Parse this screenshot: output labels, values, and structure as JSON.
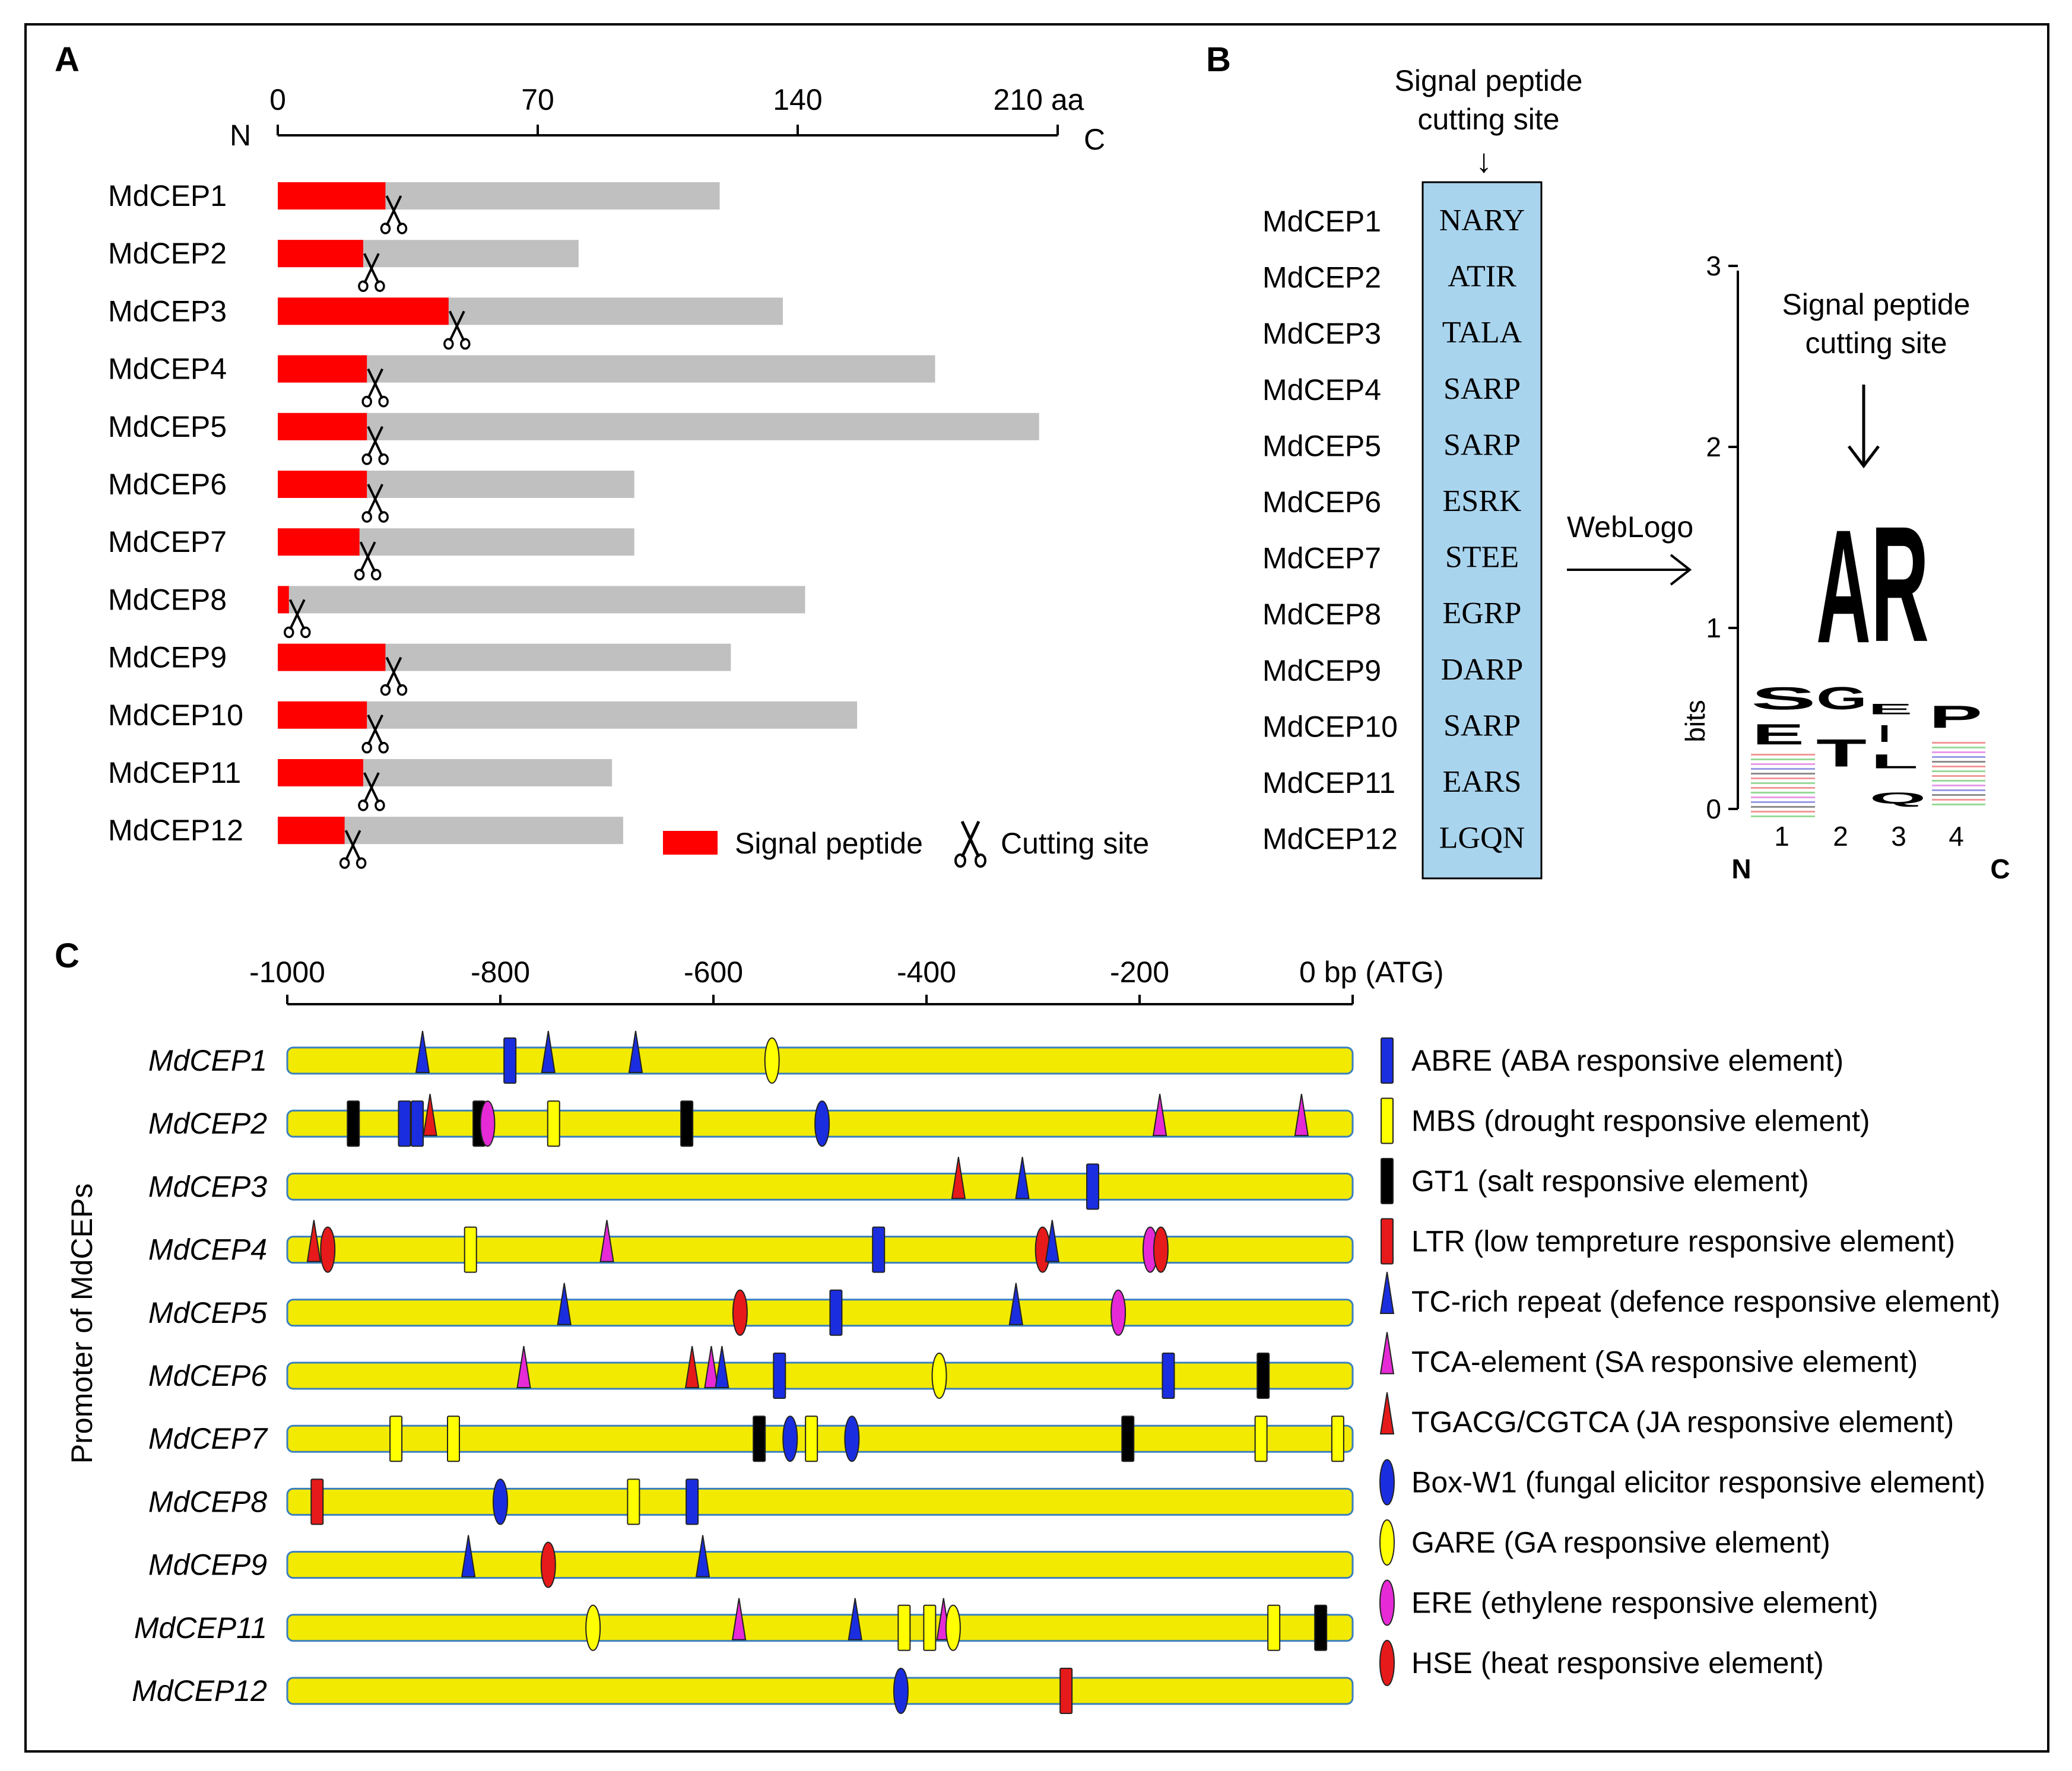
{
  "panels": {
    "A": "A",
    "B": "B",
    "C": "C"
  },
  "panelA": {
    "axis": {
      "ticks": [
        {
          "value": 0,
          "label": "0"
        },
        {
          "value": 70,
          "label": "70"
        },
        {
          "value": 140,
          "label": "140"
        },
        {
          "value": 210,
          "label": "210 aa"
        }
      ],
      "n_label": "N",
      "c_label": "C",
      "max": 210
    },
    "proteins": [
      {
        "name": "MdCEP1",
        "signal": 29,
        "length": 119
      },
      {
        "name": "MdCEP2",
        "signal": 23,
        "length": 81
      },
      {
        "name": "MdCEP3",
        "signal": 46,
        "length": 136
      },
      {
        "name": "MdCEP4",
        "signal": 24,
        "length": 177
      },
      {
        "name": "MdCEP5",
        "signal": 24,
        "length": 205
      },
      {
        "name": "MdCEP6",
        "signal": 24,
        "length": 96
      },
      {
        "name": "MdCEP7",
        "signal": 22,
        "length": 96
      },
      {
        "name": "MdCEP8",
        "signal": 3,
        "length": 142
      },
      {
        "name": "MdCEP9",
        "signal": 29,
        "length": 122
      },
      {
        "name": "MdCEP10",
        "signal": 24,
        "length": 156
      },
      {
        "name": "MdCEP11",
        "signal": 23,
        "length": 90
      },
      {
        "name": "MdCEP12",
        "signal": 18,
        "length": 93
      }
    ],
    "legend": {
      "signal": "Signal peptide",
      "cutting": "Cutting site"
    },
    "colors": {
      "signal": "#ff0000",
      "mature": "#c0c0c0"
    }
  },
  "panelB": {
    "title_line1": "Signal peptide",
    "title_line2": "cutting site",
    "arrow_glyph": "↓",
    "rows": [
      {
        "name": "MdCEP1",
        "seq": "NARY"
      },
      {
        "name": "MdCEP2",
        "seq": "ATIR"
      },
      {
        "name": "MdCEP3",
        "seq": "TALA"
      },
      {
        "name": "MdCEP4",
        "seq": "SARP"
      },
      {
        "name": "MdCEP5",
        "seq": "SARP"
      },
      {
        "name": "MdCEP6",
        "seq": "ESRK"
      },
      {
        "name": "MdCEP7",
        "seq": "STEE"
      },
      {
        "name": "MdCEP8",
        "seq": "EGRP"
      },
      {
        "name": "MdCEP9",
        "seq": "DARP"
      },
      {
        "name": "MdCEP10",
        "seq": "SARP"
      },
      {
        "name": "MdCEP11",
        "seq": "EARS"
      },
      {
        "name": "MdCEP12",
        "seq": "LGQN"
      }
    ],
    "box_color": "#a9d4ee",
    "weblogo_label": "WebLogo",
    "logo": {
      "y_axis_label": "bits",
      "y_ticks": [
        "0",
        "1",
        "2",
        "3"
      ],
      "x_ticks": [
        "1",
        "2",
        "3",
        "4"
      ],
      "n_label": "N",
      "c_label": "C",
      "title_line1": "Signal peptide",
      "title_line2": "cutting site",
      "major_letters": [
        {
          "letter": "A",
          "position": 2,
          "color": "#000000"
        },
        {
          "letter": "R",
          "position": 3,
          "color": "#1a20c8"
        }
      ],
      "minor_letters": [
        {
          "letter": "S",
          "position": 1,
          "color": "#1aaa1a"
        },
        {
          "letter": "E",
          "position": 1,
          "color": "#e01a1a"
        },
        {
          "letter": "G",
          "position": 2,
          "color": "#1aaa1a"
        },
        {
          "letter": "T",
          "position": 2,
          "color": "#1aaa1a"
        },
        {
          "letter": "E",
          "position": 3,
          "color": "#e01a1a"
        },
        {
          "letter": "I",
          "position": 3,
          "color": "#000000"
        },
        {
          "letter": "L",
          "position": 3,
          "color": "#000000"
        },
        {
          "letter": "Q",
          "position": 3,
          "color": "#cc22cc"
        },
        {
          "letter": "P",
          "position": 4,
          "color": "#000000"
        }
      ]
    }
  },
  "panelC": {
    "y_axis_label": "Promoter of MdCEPs",
    "axis": {
      "ticks": [
        {
          "value": -1000,
          "label": "-1000"
        },
        {
          "value": -800,
          "label": "-800"
        },
        {
          "value": -600,
          "label": "-600"
        },
        {
          "value": -400,
          "label": "-400"
        },
        {
          "value": -200,
          "label": "-200"
        },
        {
          "value": 0,
          "label": "0 bp (ATG)"
        }
      ]
    },
    "element_types": [
      {
        "key": "ABRE",
        "shape": "rect",
        "color": "#1a2ee0",
        "label": "ABRE (ABA responsive element)"
      },
      {
        "key": "MBS",
        "shape": "rect",
        "color": "#ffff00",
        "label": "MBS  (drought responsive element)"
      },
      {
        "key": "GT1",
        "shape": "rect",
        "color": "#000000",
        "label": "GT1 (salt responsive element)"
      },
      {
        "key": "LTR",
        "shape": "rect",
        "color": "#e61a1a",
        "label": "LTR (low tempreture responsive element)"
      },
      {
        "key": "TC",
        "shape": "tri",
        "color": "#1a2ee0",
        "label": "TC-rich repeat (defence responsive element)"
      },
      {
        "key": "TCA",
        "shape": "tri",
        "color": "#e62ad6",
        "label": "TCA-element (SA responsive element)"
      },
      {
        "key": "TGACG",
        "shape": "tri",
        "color": "#e61a1a",
        "label": "TGACG/CGTCA (JA responsive element)"
      },
      {
        "key": "BoxW1",
        "shape": "ell",
        "color": "#1a2ee0",
        "label": "Box-W1 (fungal elicitor responsive element)"
      },
      {
        "key": "GARE",
        "shape": "ell",
        "color": "#ffff00",
        "label": "GARE (GA responsive element)"
      },
      {
        "key": "ERE",
        "shape": "ell",
        "color": "#e62ad6",
        "label": "ERE (ethylene responsive element)"
      },
      {
        "key": "HSE",
        "shape": "ell",
        "color": "#e61a1a",
        "label": "HSE (heat responsive element)"
      }
    ],
    "promoters": [
      {
        "name": "MdCEP1",
        "elements": [
          {
            "type": "TC",
            "pos": -873
          },
          {
            "type": "ABRE",
            "pos": -791
          },
          {
            "type": "TC",
            "pos": -755
          },
          {
            "type": "TC",
            "pos": -673
          },
          {
            "type": "GARE",
            "pos": -545
          }
        ]
      },
      {
        "name": "MdCEP2",
        "elements": [
          {
            "type": "GT1",
            "pos": -938
          },
          {
            "type": "ABRE",
            "pos": -890
          },
          {
            "type": "ABRE",
            "pos": -878
          },
          {
            "type": "TGACG",
            "pos": -866
          },
          {
            "type": "GT1",
            "pos": -820
          },
          {
            "type": "ERE",
            "pos": -812
          },
          {
            "type": "MBS",
            "pos": -750
          },
          {
            "type": "GT1",
            "pos": -625
          },
          {
            "type": "BoxW1",
            "pos": -498
          },
          {
            "type": "TCA",
            "pos": -181
          },
          {
            "type": "TCA",
            "pos": -48
          }
        ]
      },
      {
        "name": "MdCEP3",
        "elements": [
          {
            "type": "TGACG",
            "pos": -370
          },
          {
            "type": "TC",
            "pos": -310
          },
          {
            "type": "ABRE",
            "pos": -244
          }
        ]
      },
      {
        "name": "MdCEP4",
        "elements": [
          {
            "type": "TGACG",
            "pos": -975
          },
          {
            "type": "HSE",
            "pos": -962
          },
          {
            "type": "MBS",
            "pos": -828
          },
          {
            "type": "TCA",
            "pos": -700
          },
          {
            "type": "ABRE",
            "pos": -445
          },
          {
            "type": "HSE",
            "pos": -291
          },
          {
            "type": "TC",
            "pos": -282
          },
          {
            "type": "ERE",
            "pos": -190
          },
          {
            "type": "HSE",
            "pos": -180
          }
        ]
      },
      {
        "name": "MdCEP5",
        "elements": [
          {
            "type": "TC",
            "pos": -740
          },
          {
            "type": "HSE",
            "pos": -575
          },
          {
            "type": "ABRE",
            "pos": -485
          },
          {
            "type": "TC",
            "pos": -316
          },
          {
            "type": "ERE",
            "pos": -220
          }
        ]
      },
      {
        "name": "MdCEP6",
        "elements": [
          {
            "type": "TCA",
            "pos": -778
          },
          {
            "type": "TGACG",
            "pos": -620
          },
          {
            "type": "TCA",
            "pos": -602
          },
          {
            "type": "TC",
            "pos": -592
          },
          {
            "type": "ABRE",
            "pos": -538
          },
          {
            "type": "GARE",
            "pos": -388
          },
          {
            "type": "ABRE",
            "pos": -173
          },
          {
            "type": "GT1",
            "pos": -84
          }
        ]
      },
      {
        "name": "MdCEP7",
        "elements": [
          {
            "type": "MBS",
            "pos": -898
          },
          {
            "type": "MBS",
            "pos": -844
          },
          {
            "type": "GT1",
            "pos": -557
          },
          {
            "type": "BoxW1",
            "pos": -528
          },
          {
            "type": "MBS",
            "pos": -508
          },
          {
            "type": "BoxW1",
            "pos": -470
          },
          {
            "type": "GT1",
            "pos": -211
          },
          {
            "type": "MBS",
            "pos": -86
          },
          {
            "type": "MBS",
            "pos": -14
          }
        ]
      },
      {
        "name": "MdCEP8",
        "elements": [
          {
            "type": "LTR",
            "pos": -972
          },
          {
            "type": "BoxW1",
            "pos": -800
          },
          {
            "type": "MBS",
            "pos": -675
          },
          {
            "type": "ABRE",
            "pos": -620
          }
        ]
      },
      {
        "name": "MdCEP9",
        "elements": [
          {
            "type": "TC",
            "pos": -830
          },
          {
            "type": "HSE",
            "pos": -755
          },
          {
            "type": "TC",
            "pos": -610
          }
        ]
      },
      {
        "name": "MdCEP11",
        "elements": [
          {
            "type": "GARE",
            "pos": -713
          },
          {
            "type": "TCA",
            "pos": -576
          },
          {
            "type": "TC",
            "pos": -467
          },
          {
            "type": "MBS",
            "pos": -421
          },
          {
            "type": "MBS",
            "pos": -397
          },
          {
            "type": "TCA",
            "pos": -384
          },
          {
            "type": "GARE",
            "pos": -375
          },
          {
            "type": "MBS",
            "pos": -74
          },
          {
            "type": "GT1",
            "pos": -30
          }
        ]
      },
      {
        "name": "MdCEP12",
        "elements": [
          {
            "type": "BoxW1",
            "pos": -424
          },
          {
            "type": "LTR",
            "pos": -269
          }
        ]
      }
    ],
    "bar_color": "#f2ea00"
  }
}
